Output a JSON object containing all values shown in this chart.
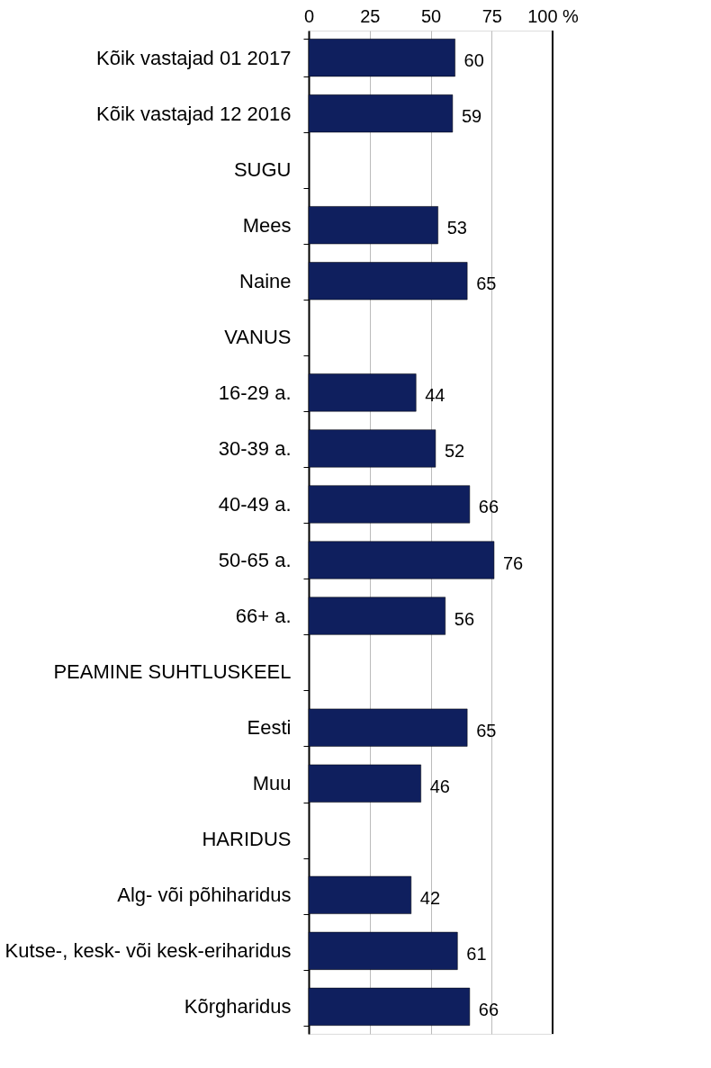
{
  "chart_data": {
    "type": "bar",
    "orientation": "horizontal",
    "categories": [
      "Kõik vastajad 01 2017",
      "Kõik vastajad 12 2016",
      "SUGU",
      "Mees",
      "Naine",
      "VANUS",
      "16-29 a.",
      "30-39 a.",
      "40-49 a.",
      "50-65 a.",
      "66+ a.",
      "PEAMINE SUHTLUSKEEL",
      "Eesti",
      "Muu",
      "HARIDUS",
      "Alg- või põhiharidus",
      "Kutse-, kesk- või kesk-eriharidus",
      "Kõrgharidus"
    ],
    "values": [
      60,
      59,
      null,
      53,
      65,
      null,
      44,
      52,
      66,
      76,
      56,
      null,
      65,
      46,
      null,
      42,
      61,
      66
    ],
    "color": "#0f1f5e",
    "xlim": [
      0,
      100
    ],
    "xticks": [
      0,
      25,
      50,
      75,
      {
        "value": 100,
        "label": "100 %"
      }
    ],
    "grid": "x",
    "data_labels": true
  }
}
